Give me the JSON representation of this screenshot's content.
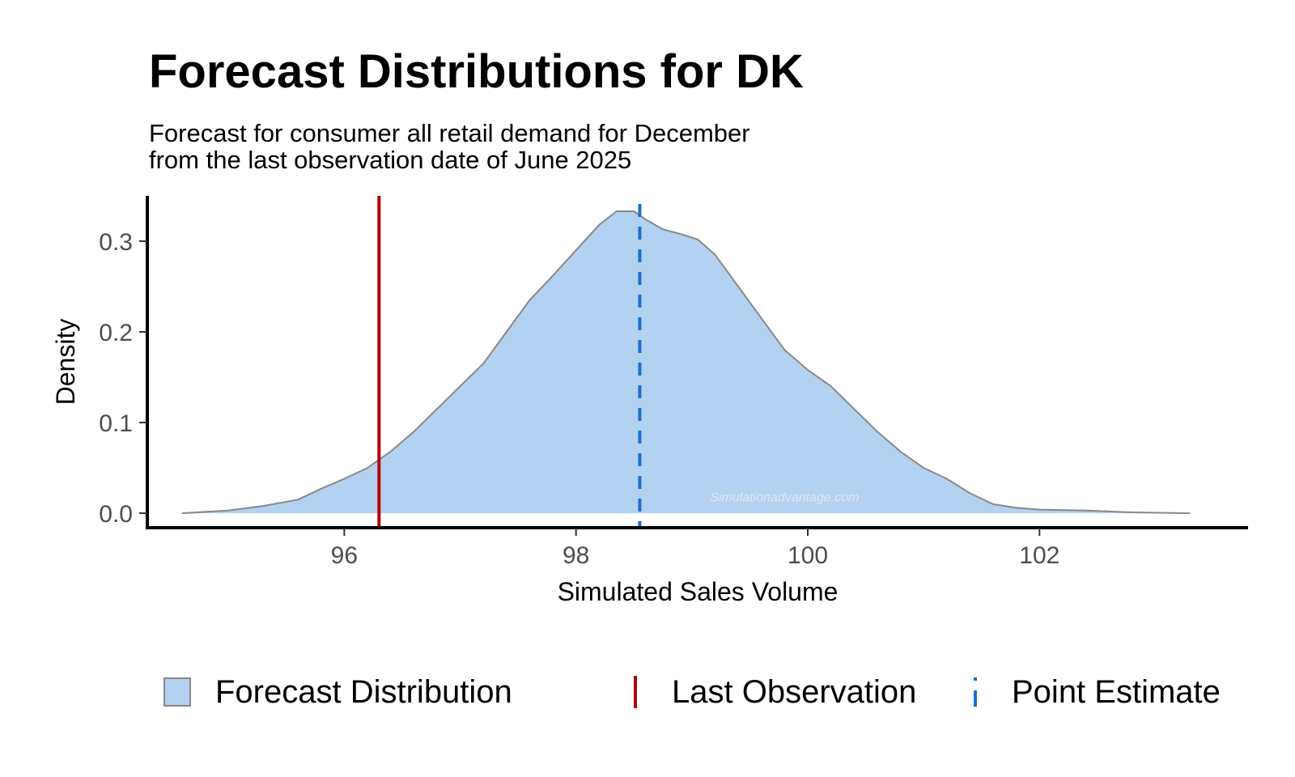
{
  "chart_data": {
    "type": "area",
    "title": "Forecast Distributions for DK",
    "subtitle_lines": [
      "Forecast for consumer all retail demand for December",
      "from the last observation date of June 2025"
    ],
    "xlabel": "Simulated Sales Volume",
    "ylabel": "Density",
    "xlim": [
      94.3,
      103.8
    ],
    "ylim": [
      -0.016,
      0.35
    ],
    "x_ticks": [
      96,
      98,
      100,
      102
    ],
    "x_tick_labels": [
      "96",
      "98",
      "100",
      "102"
    ],
    "y_ticks": [
      0.0,
      0.1,
      0.2,
      0.3
    ],
    "y_tick_labels": [
      "0.0",
      "0.1",
      "0.2",
      "0.3"
    ],
    "grid": false,
    "legend_position": "bottom",
    "watermark": "Simulationadvantage.com",
    "series": [
      {
        "name": "Forecast Distribution",
        "x": [
          94.6,
          95.0,
          95.3,
          95.6,
          95.8,
          96.0,
          96.2,
          96.4,
          96.6,
          96.8,
          97.0,
          97.2,
          97.4,
          97.6,
          97.8,
          98.0,
          98.2,
          98.35,
          98.5,
          98.6,
          98.75,
          98.9,
          99.05,
          99.2,
          99.4,
          99.6,
          99.8,
          100.0,
          100.2,
          100.4,
          100.6,
          100.8,
          101.0,
          101.2,
          101.4,
          101.6,
          101.8,
          102.0,
          102.4,
          102.8,
          103.3
        ],
        "y": [
          0.0,
          0.003,
          0.008,
          0.015,
          0.027,
          0.038,
          0.05,
          0.068,
          0.09,
          0.115,
          0.14,
          0.165,
          0.2,
          0.235,
          0.262,
          0.29,
          0.318,
          0.333,
          0.333,
          0.324,
          0.313,
          0.308,
          0.302,
          0.285,
          0.25,
          0.215,
          0.18,
          0.158,
          0.14,
          0.115,
          0.09,
          0.068,
          0.05,
          0.038,
          0.022,
          0.01,
          0.006,
          0.004,
          0.003,
          0.001,
          0.0
        ],
        "fill": "#b3d1f0",
        "stroke": "#888888"
      }
    ],
    "reference_lines": [
      {
        "name": "Last Observation",
        "x": 96.3,
        "color": "#b30000",
        "style": "solid"
      },
      {
        "name": "Point Estimate",
        "x": 98.55,
        "color": "#1a6fcf",
        "style": "dashed"
      }
    ],
    "legend": [
      {
        "label": "Forecast Distribution",
        "kind": "fill"
      },
      {
        "label": "Last Observation",
        "kind": "solid"
      },
      {
        "label": "Point Estimate",
        "kind": "dashed"
      }
    ]
  }
}
